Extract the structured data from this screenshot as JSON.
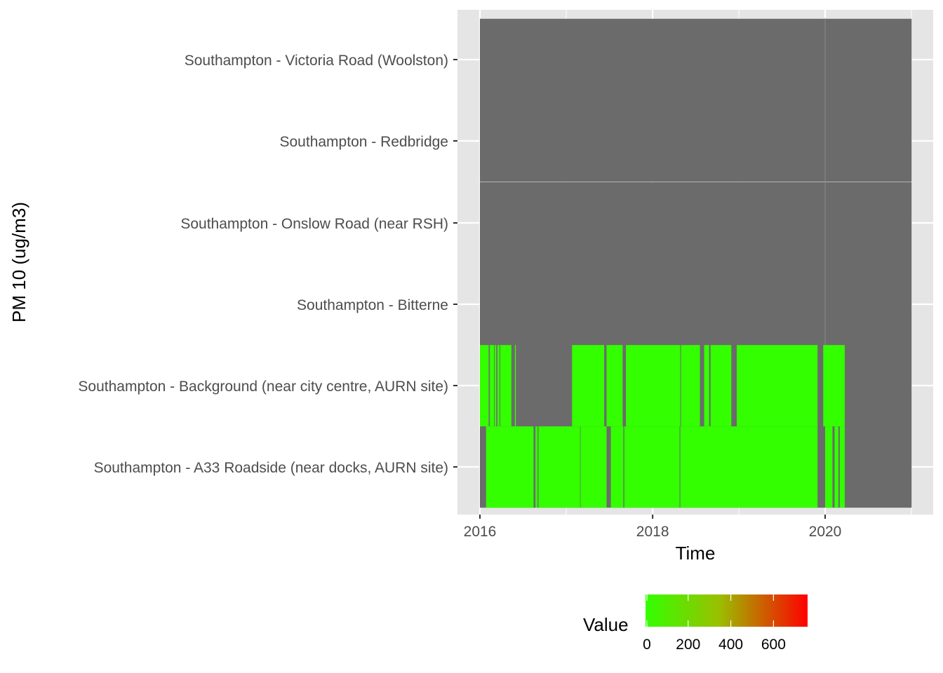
{
  "colors": {
    "panel_background": "#e5e5e5",
    "grid_major": "#ffffff",
    "missing": "#6b6b6b",
    "low": "#33ff00",
    "high": "#ff0000",
    "axis_text": "#4d4d4d",
    "title_text": "#000000"
  },
  "chart_data": {
    "type": "heatmap",
    "title": "",
    "xlabel": "Time",
    "ylabel": "PM 10 (ug/m3)",
    "x_ticks": [
      "2016",
      "2018",
      "2020"
    ],
    "xlim": [
      "2016-01-01",
      "2021-01-01"
    ],
    "categories": [
      "Southampton - A33 Roadside (near docks, AURN site)",
      "Southampton - Background (near city centre, AURN site)",
      "Southampton - Bitterne",
      "Southampton - Onslow Road (near RSH)",
      "Southampton - Redbridge",
      "Southampton - Victoria Road (Woolston)"
    ],
    "series": [
      {
        "site": "Southampton - A33 Roadside (near docks, AURN site)",
        "measured_periods": [
          [
            "2016-01-27",
            "2016-08-15"
          ],
          [
            "2016-08-23",
            "2016-09-01"
          ],
          [
            "2016-09-05",
            "2017-02-28"
          ],
          [
            "2017-03-02",
            "2017-06-20"
          ],
          [
            "2017-07-08",
            "2017-08-30"
          ],
          [
            "2017-09-03",
            "2018-04-25"
          ],
          [
            "2018-04-28",
            "2019-11-30"
          ],
          [
            "2020-01-01",
            "2020-02-01"
          ],
          [
            "2020-02-10",
            "2020-02-26"
          ],
          [
            "2020-03-03",
            "2020-03-24"
          ]
        ]
      },
      {
        "site": "Southampton - Background (near city centre, AURN site)",
        "measured_periods": [
          [
            "2016-01-01",
            "2016-02-07"
          ],
          [
            "2016-02-12",
            "2016-03-01"
          ],
          [
            "2016-03-04",
            "2016-03-10"
          ],
          [
            "2016-03-15",
            "2016-03-24"
          ],
          [
            "2016-03-27",
            "2016-05-13"
          ],
          [
            "2016-05-28",
            "2016-06-01"
          ],
          [
            "2017-01-25",
            "2017-06-10"
          ],
          [
            "2017-06-20",
            "2017-08-27"
          ],
          [
            "2017-09-10",
            "2018-04-28"
          ],
          [
            "2018-05-01",
            "2018-07-20"
          ],
          [
            "2018-08-07",
            "2018-08-28"
          ],
          [
            "2018-09-03",
            "2018-11-30"
          ],
          [
            "2018-12-23",
            "2019-11-30"
          ],
          [
            "2019-12-24",
            "2020-03-24"
          ]
        ]
      },
      {
        "site": "Southampton - Bitterne",
        "measured_periods": []
      },
      {
        "site": "Southampton - Onslow Road (near RSH)",
        "measured_periods": []
      },
      {
        "site": "Southampton - Redbridge",
        "measured_periods": []
      },
      {
        "site": "Southampton - Victoria Road (Woolston)",
        "measured_periods": []
      }
    ],
    "measured_value_approx": 25,
    "legend": {
      "title": "Value",
      "position": "bottom",
      "ticks": [
        "0",
        "200",
        "400",
        "600"
      ],
      "range": [
        0,
        760
      ]
    },
    "grid": true
  }
}
